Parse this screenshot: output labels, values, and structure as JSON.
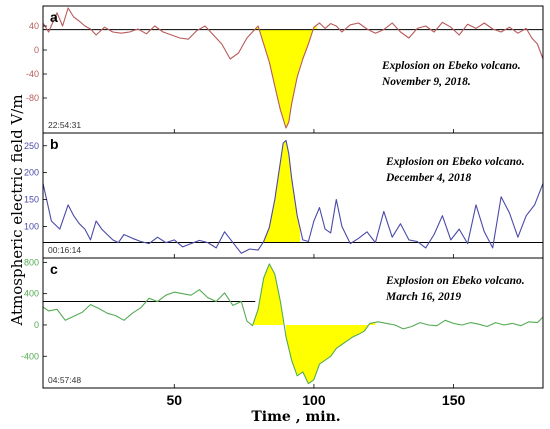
{
  "figure": {
    "ylabel": "Atmospheric electric field V/m",
    "xlabel": "Time , min.",
    "x_ticks": [
      50,
      100,
      150
    ],
    "xlim": [
      3,
      182
    ],
    "fill_color": "#ffff00",
    "frame_color": "#000000",
    "baseline_color": "#000000"
  },
  "chart_data": [
    {
      "type": "line",
      "letter": "a",
      "annotation": [
        "Explosion on Ebeko volcano.",
        "November 9, 2018."
      ],
      "timestamp": "22:54:31",
      "color": "#b85a5a",
      "ylim": [
        -135,
        70
      ],
      "y_ticks": [
        40,
        0,
        -40,
        -80
      ],
      "threshold": 34,
      "fill_range": [
        78,
        101
      ],
      "x": [
        3,
        5,
        8,
        10,
        12,
        14,
        16,
        18,
        20,
        22,
        25,
        28,
        31,
        34,
        37,
        40,
        43,
        46,
        49,
        52,
        55,
        58,
        61,
        64,
        67,
        70,
        73,
        76,
        78,
        80,
        82,
        84,
        86,
        88,
        90,
        91,
        92,
        94,
        96,
        98,
        100,
        102,
        104,
        106,
        108,
        110,
        113,
        116,
        119,
        122,
        125,
        128,
        131,
        134,
        137,
        140,
        143,
        146,
        149,
        152,
        155,
        158,
        161,
        164,
        167,
        170,
        173,
        176,
        178,
        180,
        182
      ],
      "y": [
        45,
        30,
        62,
        40,
        70,
        55,
        48,
        40,
        35,
        25,
        38,
        30,
        28,
        30,
        35,
        27,
        40,
        30,
        25,
        20,
        18,
        32,
        40,
        25,
        10,
        -15,
        -5,
        20,
        30,
        40,
        10,
        -20,
        -60,
        -100,
        -130,
        -120,
        -90,
        -45,
        -15,
        10,
        38,
        45,
        36,
        44,
        40,
        30,
        42,
        45,
        35,
        28,
        34,
        45,
        30,
        20,
        36,
        40,
        30,
        46,
        38,
        25,
        43,
        36,
        45,
        35,
        30,
        38,
        28,
        36,
        20,
        10,
        -15
      ]
    },
    {
      "type": "line",
      "letter": "b",
      "annotation": [
        "Explosion on Ebeko volcano.",
        "December 4, 2018"
      ],
      "timestamp": "00:16:14",
      "color": "#4a4aa8",
      "ylim": [
        45,
        270
      ],
      "y_ticks": [
        250,
        200,
        150,
        100
      ],
      "threshold": 70,
      "fill_range": [
        82,
        95
      ],
      "x": [
        3,
        6,
        9,
        12,
        14,
        16,
        18,
        20,
        22,
        24,
        26,
        28,
        30,
        32,
        35,
        38,
        41,
        44,
        47,
        50,
        53,
        56,
        59,
        62,
        65,
        68,
        71,
        74,
        77,
        80,
        82,
        84,
        86,
        88,
        89,
        90,
        91,
        92,
        94,
        96,
        98,
        100,
        102,
        104,
        106,
        108,
        110,
        113,
        116,
        119,
        122,
        125,
        128,
        131,
        134,
        137,
        140,
        143,
        146,
        149,
        152,
        155,
        158,
        161,
        164,
        167,
        170,
        173,
        176,
        179,
        182
      ],
      "y": [
        180,
        110,
        95,
        140,
        120,
        105,
        95,
        75,
        110,
        95,
        85,
        75,
        70,
        85,
        78,
        72,
        68,
        80,
        70,
        75,
        62,
        68,
        74,
        70,
        60,
        90,
        70,
        50,
        58,
        56,
        72,
        98,
        150,
        220,
        255,
        260,
        235,
        190,
        120,
        75,
        72,
        110,
        135,
        95,
        88,
        150,
        100,
        68,
        78,
        90,
        70,
        128,
        80,
        105,
        75,
        72,
        60,
        85,
        120,
        75,
        95,
        68,
        140,
        90,
        60,
        155,
        125,
        80,
        120,
        140,
        180
      ]
    },
    {
      "type": "line",
      "letter": "c",
      "annotation": [
        "Explosion on Ebeko volcano.",
        "March 16, 2019"
      ],
      "timestamp": "04:57:48",
      "color": "#55aa55",
      "ylim": [
        -780,
        830
      ],
      "y_ticks": [
        800,
        400,
        0,
        -400
      ],
      "threshold_line": {
        "y": 300,
        "x_from": 3,
        "x_to": 79
      },
      "fill_ranges": [
        [
          78,
          89
        ],
        [
          90,
          122
        ]
      ],
      "fill_baselines": [
        0,
        0
      ],
      "x": [
        3,
        5,
        8,
        11,
        14,
        17,
        20,
        23,
        26,
        29,
        32,
        35,
        38,
        41,
        44,
        47,
        50,
        53,
        56,
        59,
        62,
        65,
        68,
        71,
        74,
        76,
        78,
        80,
        82,
        84,
        86,
        88,
        90,
        92,
        94,
        96,
        98,
        100,
        102,
        104,
        106,
        108,
        110,
        112,
        114,
        116,
        118,
        120,
        123,
        126,
        129,
        132,
        135,
        138,
        141,
        144,
        147,
        150,
        153,
        156,
        159,
        162,
        165,
        168,
        171,
        174,
        177,
        180,
        182
      ],
      "y": [
        230,
        180,
        200,
        60,
        110,
        160,
        260,
        210,
        150,
        120,
        60,
        150,
        220,
        340,
        300,
        380,
        420,
        400,
        380,
        450,
        350,
        300,
        410,
        250,
        300,
        50,
        -10,
        200,
        600,
        780,
        650,
        300,
        -150,
        -450,
        -650,
        -600,
        -750,
        -700,
        -500,
        -450,
        -400,
        -300,
        -250,
        -200,
        -150,
        -120,
        -80,
        20,
        40,
        20,
        0,
        -50,
        -20,
        30,
        0,
        -10,
        60,
        20,
        0,
        30,
        10,
        -20,
        30,
        0,
        20,
        -10,
        40,
        30,
        100
      ]
    }
  ]
}
